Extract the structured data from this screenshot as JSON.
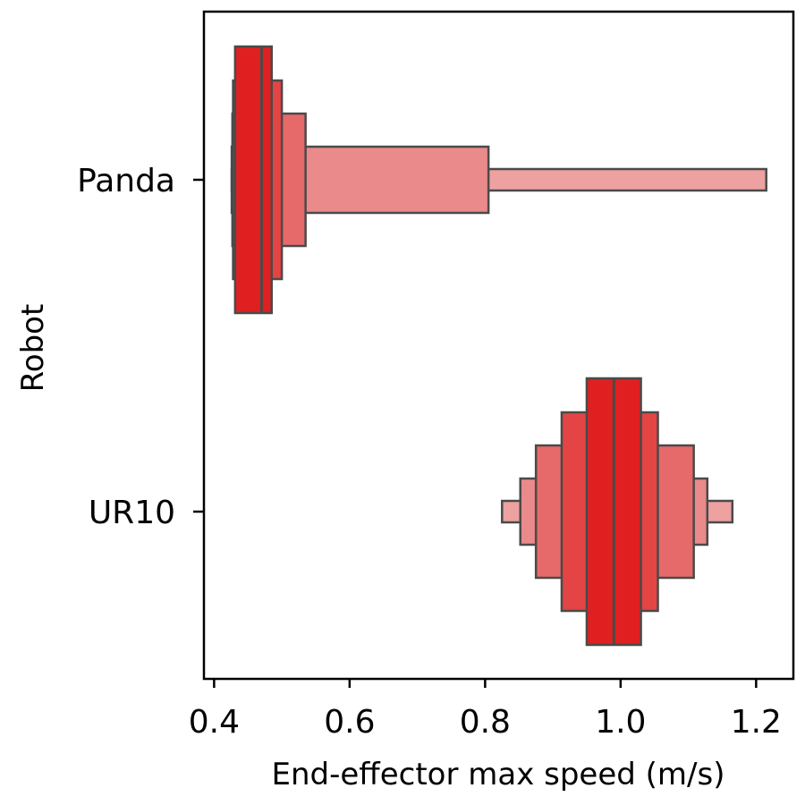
{
  "chart_data": {
    "type": "boxen",
    "orientation": "horizontal",
    "xlabel": "End-effector max speed (m/s)",
    "ylabel": "Robot",
    "xlim": [
      0.385,
      1.255
    ],
    "xticks": [
      0.4,
      0.6,
      0.8,
      1.0,
      1.2
    ],
    "xtick_labels": [
      "0.4",
      "0.6",
      "0.8",
      "1.0",
      "1.2"
    ],
    "categories": [
      "Panda",
      "UR10"
    ],
    "grid": false,
    "legend": "none",
    "colors": {
      "edge": "#4a4a4a",
      "frame": "#000000",
      "levels": [
        "#e02020",
        "#e44444",
        "#e76a6a",
        "#ea8a8a",
        "#eda1a1"
      ]
    },
    "series": [
      {
        "category": "Panda",
        "median": 0.47,
        "boxes": [
          {
            "low": 0.431,
            "high": 0.485
          },
          {
            "low": 0.428,
            "high": 0.5
          },
          {
            "low": 0.427,
            "high": 0.535
          },
          {
            "low": 0.426,
            "high": 0.805
          },
          {
            "low": 0.426,
            "high": 1.215
          }
        ]
      },
      {
        "category": "UR10",
        "median": 0.99,
        "boxes": [
          {
            "low": 0.95,
            "high": 1.03
          },
          {
            "low": 0.913,
            "high": 1.055
          },
          {
            "low": 0.875,
            "high": 1.108
          },
          {
            "low": 0.852,
            "high": 1.128
          },
          {
            "low": 0.825,
            "high": 1.165
          }
        ]
      }
    ]
  }
}
